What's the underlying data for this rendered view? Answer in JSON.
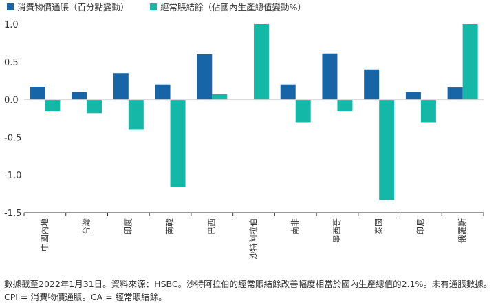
{
  "chart_data": {
    "type": "bar",
    "categories": [
      "中國內地",
      "台灣",
      "印度",
      "南韓",
      "巴西",
      "沙特阿拉伯",
      "南非",
      "墨西哥",
      "泰國",
      "印尼",
      "俄羅斯"
    ],
    "series": [
      {
        "name": "消費物價通脹（百分點變動）",
        "color": "#1765a6",
        "values": [
          0.17,
          0.1,
          0.35,
          0.2,
          0.6,
          null,
          0.2,
          0.61,
          0.4,
          0.1,
          0.16
        ]
      },
      {
        "name": "經常賬結餘（佔國內生產總值變動%）",
        "color": "#14b8a6",
        "values": [
          -0.15,
          -0.18,
          -0.4,
          -1.16,
          0.07,
          1.0,
          -0.3,
          -0.15,
          -1.33,
          -0.3,
          1.0
        ]
      }
    ],
    "yticks": [
      "1.0",
      "0.5",
      "0.0",
      "-0.5",
      "-1.0",
      "-1.5"
    ],
    "ylim": [
      -1.5,
      1.0
    ],
    "grid": false,
    "legend_position": "top-left"
  },
  "footnote": "數據截至2022年1月31日。資料來源：HSBC。沙特阿拉伯的經常賬結餘改善幅度相當於國內生產總值的2.1%。未有通脹數據。CPI = 消費物價通脹。CA = 經常賬結餘。"
}
